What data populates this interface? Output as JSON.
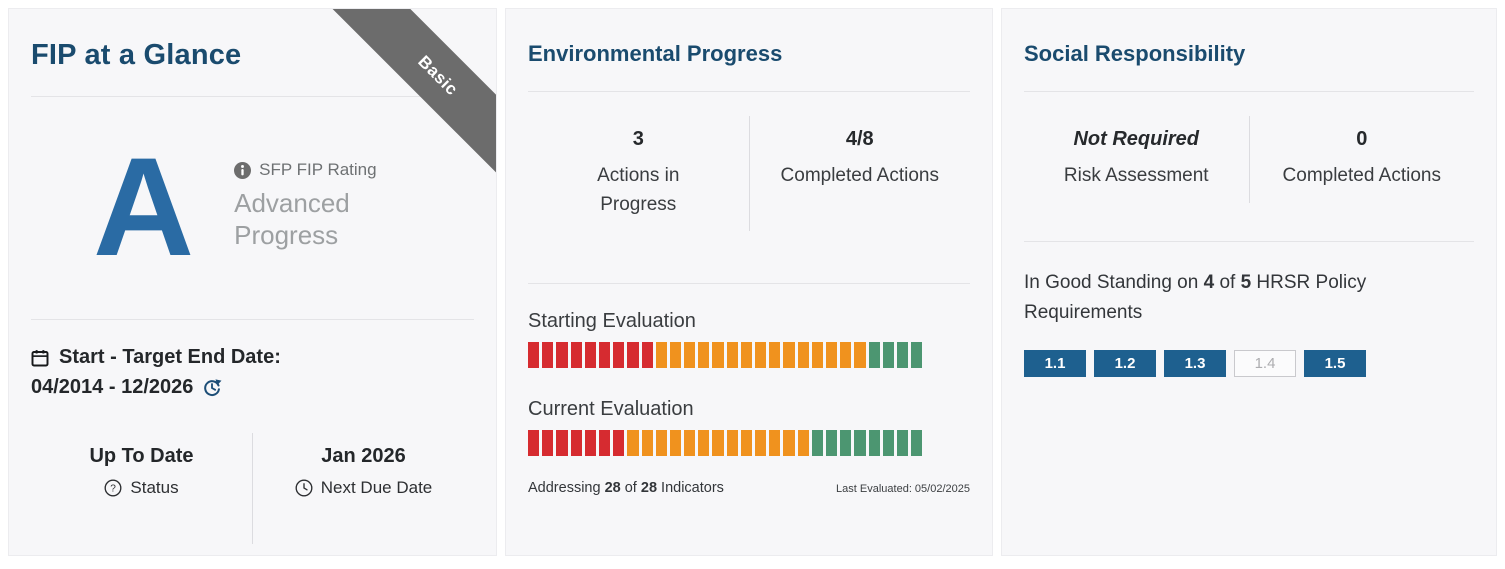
{
  "colors": {
    "heading_navy": "#1a4b6e",
    "rating_blue": "#2a6ba4",
    "ribbon_gray": "#6c6c6c",
    "bar_red": "#d62b30",
    "bar_orange": "#f0921e",
    "bar_green": "#4c9671",
    "chip_blue": "#1e608f"
  },
  "fip_card": {
    "title": "FIP at a Glance",
    "ribbon_label": "Basic",
    "rating": {
      "letter": "A",
      "label": "SFP FIP Rating",
      "description": "Advanced Progress"
    },
    "dates": {
      "label": "Start - Target End Date:",
      "value": "04/2014 - 12/2026"
    },
    "status": {
      "value": "Up To Date",
      "label": "Status"
    },
    "next_due": {
      "value": "Jan 2026",
      "label": "Next Due Date"
    }
  },
  "environmental_card": {
    "title": "Environmental Progress",
    "stats": [
      {
        "value": "3",
        "label": "Actions in Progress"
      },
      {
        "value": "4/8",
        "label": "Completed Actions"
      }
    ],
    "evaluations": [
      {
        "label": "Starting Evaluation",
        "total_segments": 28,
        "segments": [
          {
            "color": "red",
            "count": 9
          },
          {
            "color": "orange",
            "count": 15
          },
          {
            "color": "green",
            "count": 4
          }
        ]
      },
      {
        "label": "Current Evaluation",
        "total_segments": 28,
        "segments": [
          {
            "color": "red",
            "count": 7
          },
          {
            "color": "orange",
            "count": 13
          },
          {
            "color": "green",
            "count": 8
          }
        ]
      }
    ],
    "addressing": {
      "prefix": "Addressing ",
      "n1": "28",
      "mid": " of ",
      "n2": "28",
      "suffix": " Indicators"
    },
    "last_evaluated": "Last Evaluated: 05/02/2025"
  },
  "social_card": {
    "title": "Social Responsibility",
    "stats": [
      {
        "value": "Not Required",
        "label": "Risk Assessment"
      },
      {
        "value": "0",
        "label": "Completed Actions"
      }
    ],
    "hrsr": {
      "prefix": "In Good Standing on ",
      "n1": "4",
      "mid": " of ",
      "n2": "5",
      "suffix": " HRSR Policy Requirements"
    },
    "chips": [
      {
        "label": "1.1",
        "state": "met"
      },
      {
        "label": "1.2",
        "state": "met"
      },
      {
        "label": "1.3",
        "state": "met"
      },
      {
        "label": "1.4",
        "state": "not_met"
      },
      {
        "label": "1.5",
        "state": "met"
      }
    ]
  }
}
